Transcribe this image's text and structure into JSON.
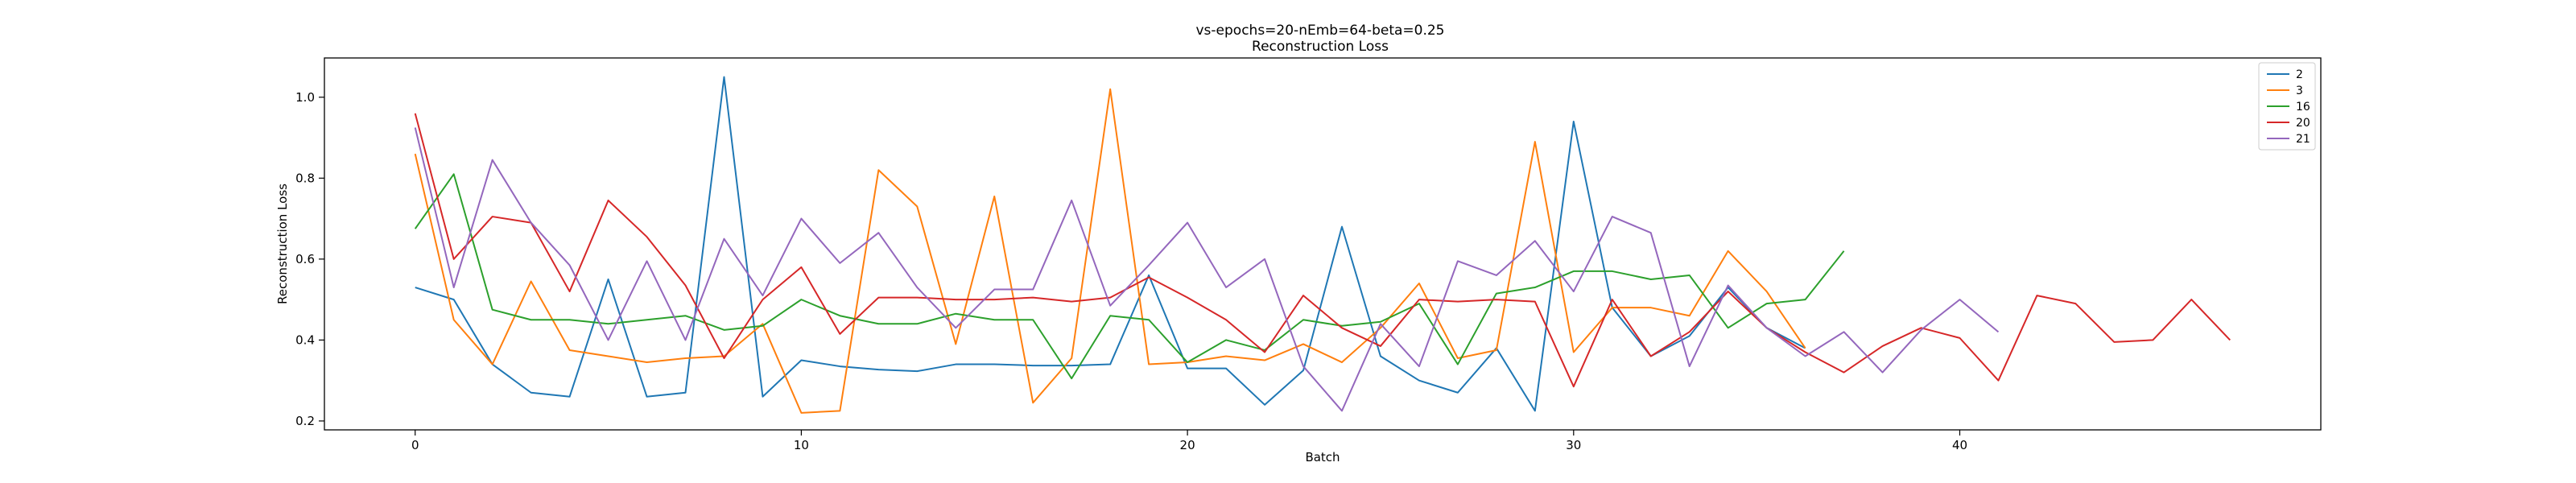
{
  "chart_data": {
    "type": "line",
    "title": "vs-epochs=20-nEmb=64-beta=0.25",
    "subtitle": "Reconstruction Loss",
    "xlabel": "Batch",
    "ylabel": "Reconstruction Loss",
    "xlim": [
      -2.35,
      49.35
    ],
    "ylim": [
      0.178,
      1.097
    ],
    "xticks": [
      0,
      10,
      20,
      30,
      40
    ],
    "yticks": [
      0.2,
      0.4,
      0.6,
      0.8,
      1.0
    ],
    "ytick_labels": [
      "0.2",
      "0.4",
      "0.6",
      "0.8",
      "1.0"
    ],
    "grid": false,
    "legend": "top-right",
    "series": [
      {
        "name": "2",
        "color": "#1f77b4",
        "values": [
          0.53,
          0.5,
          0.34,
          0.27,
          0.26,
          0.55,
          0.26,
          0.27,
          1.05,
          0.26,
          0.35,
          0.335,
          0.327,
          0.323,
          0.34,
          0.34,
          0.337,
          0.337,
          0.34,
          0.56,
          0.33,
          0.33,
          0.24,
          0.325,
          0.68,
          0.36,
          0.3,
          0.27,
          0.38,
          0.225,
          0.94,
          0.48,
          0.36,
          0.41,
          0.53,
          0.43,
          0.38
        ]
      },
      {
        "name": "3",
        "color": "#ff7f0e",
        "values": [
          0.86,
          0.45,
          0.34,
          0.545,
          0.375,
          0.36,
          0.345,
          0.355,
          0.36,
          0.44,
          0.22,
          0.225,
          0.82,
          0.73,
          0.39,
          0.755,
          0.245,
          0.355,
          1.02,
          0.34,
          0.345,
          0.36,
          0.35,
          0.39,
          0.345,
          0.43,
          0.54,
          0.355,
          0.375,
          0.89,
          0.37,
          0.48,
          0.48,
          0.46,
          0.62,
          0.52,
          0.38
        ]
      },
      {
        "name": "16",
        "color": "#2ca02c",
        "values": [
          0.675,
          0.81,
          0.475,
          0.45,
          0.45,
          0.44,
          0.45,
          0.46,
          0.425,
          0.435,
          0.5,
          0.46,
          0.44,
          0.44,
          0.465,
          0.45,
          0.45,
          0.305,
          0.46,
          0.45,
          0.345,
          0.4,
          0.375,
          0.45,
          0.435,
          0.445,
          0.49,
          0.34,
          0.515,
          0.53,
          0.57,
          0.57,
          0.55,
          0.56,
          0.43,
          0.49,
          0.5,
          0.62
        ]
      },
      {
        "name": "20",
        "color": "#d62728",
        "values": [
          0.96,
          0.6,
          0.705,
          0.69,
          0.52,
          0.745,
          0.655,
          0.535,
          0.355,
          0.5,
          0.58,
          0.415,
          0.505,
          0.505,
          0.5,
          0.5,
          0.505,
          0.495,
          0.505,
          0.555,
          0.505,
          0.45,
          0.37,
          0.51,
          0.43,
          0.385,
          0.5,
          0.495,
          0.5,
          0.495,
          0.285,
          0.5,
          0.36,
          0.42,
          0.52,
          0.43,
          0.37,
          0.32,
          0.385,
          0.43,
          0.405,
          0.3,
          0.51,
          0.49,
          0.395,
          0.4,
          0.5,
          0.4
        ]
      },
      {
        "name": "21",
        "color": "#9467bd",
        "values": [
          0.925,
          0.53,
          0.845,
          0.69,
          0.585,
          0.4,
          0.595,
          0.4,
          0.65,
          0.51,
          0.7,
          0.59,
          0.665,
          0.53,
          0.43,
          0.525,
          0.525,
          0.745,
          0.485,
          0.585,
          0.69,
          0.53,
          0.6,
          0.335,
          0.225,
          0.44,
          0.335,
          0.595,
          0.56,
          0.645,
          0.52,
          0.705,
          0.665,
          0.335,
          0.535,
          0.43,
          0.36,
          0.42,
          0.32,
          0.425,
          0.5,
          0.42
        ]
      }
    ]
  }
}
